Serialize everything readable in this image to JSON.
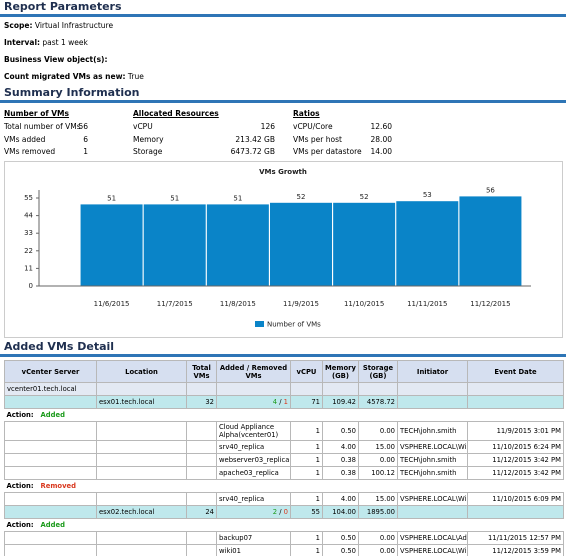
{
  "report_parameters": {
    "title": "Report Parameters",
    "items": [
      {
        "label": "Scope:",
        "value": "Virtual Infrastructure"
      },
      {
        "label": "Interval:",
        "value": "past 1 week"
      },
      {
        "label": "Business View object(s):"
      },
      {
        "label": "Count migrated VMs as new:",
        "value": "True"
      }
    ]
  },
  "summary": {
    "title": "Summary Information",
    "groups": [
      {
        "heading": "Number of VMs",
        "rows": [
          [
            "Total number of VMs",
            "56"
          ],
          [
            "VMs added",
            "6"
          ],
          [
            "VMs removed",
            "1"
          ]
        ]
      },
      {
        "heading": "Allocated Resources",
        "rows": [
          [
            "vCPU",
            "126"
          ],
          [
            "Memory",
            "213.42 GB"
          ],
          [
            "Storage",
            "6473.72 GB"
          ]
        ]
      },
      {
        "heading": "Ratios",
        "rows": [
          [
            "vCPU/Core",
            "12.60"
          ],
          [
            "VMs per host",
            "28.00"
          ],
          [
            "VMs per datastore",
            "14.00"
          ]
        ]
      }
    ]
  },
  "chart_data": {
    "type": "bar",
    "title": "VMs Growth",
    "categories": [
      "11/6/2015",
      "11/7/2015",
      "11/8/2015",
      "11/9/2015",
      "11/10/2015",
      "11/11/2015",
      "11/12/2015"
    ],
    "series": [
      {
        "name": "Number of VMs",
        "color": "#0a84c8",
        "values": [
          51,
          51,
          51,
          52,
          52,
          53,
          56
        ]
      }
    ],
    "ylim": [
      0,
      60
    ],
    "yticks": [
      0,
      11,
      22,
      33,
      44,
      55
    ],
    "grid": false,
    "legend": "bottom"
  },
  "added_vms": {
    "title": "Added VMs Detail",
    "columns": [
      "vCenter Server",
      "Location",
      "Total VMs",
      "Added / Removed VMs",
      "vCPU",
      "Memory (GB)",
      "Storage (GB)",
      "Initiator",
      "Event Date"
    ],
    "rows": [
      {
        "vcenter": "vcenter01.tech.local"
      },
      {
        "host": "esx01.tech.local",
        "total": "32",
        "added": "4",
        "separator": "/",
        "removed": "1",
        "vcpu": "71",
        "memory": "109.42",
        "storage": "4578.72"
      },
      {
        "action": "Action:",
        "status": "Added"
      },
      {
        "vm": "Cloud Appliance Alpha(vcenter01)",
        "vcpu": "1",
        "memory": "0.50",
        "storage": "0.00",
        "initiator": "TECH\\john.smith",
        "date": "11/9/2015 3:01 PM"
      },
      {
        "vm": "srv40_replica",
        "vcpu": "1",
        "memory": "4.00",
        "storage": "15.00",
        "initiator": "VSPHERE.LOCAL\\William.Fox",
        "date": "11/10/2015 6:24 PM"
      },
      {
        "vm": "webserver03_replica",
        "vcpu": "1",
        "memory": "0.38",
        "storage": "0.00",
        "initiator": "TECH\\john.smith",
        "date": "11/12/2015 3:42 PM"
      },
      {
        "vm": "apache03_replica",
        "vcpu": "1",
        "memory": "0.38",
        "storage": "100.12",
        "initiator": "TECH\\john.smith",
        "date": "11/12/2015 3:42 PM"
      },
      {
        "action": "Action:",
        "status": "Removed"
      },
      {
        "vm": "srv40_replica",
        "vcpu": "1",
        "memory": "4.00",
        "storage": "15.00",
        "initiator": "VSPHERE.LOCAL\\William.Fox",
        "date": "11/10/2015 6:09 PM"
      },
      {
        "host": "esx02.tech.local",
        "total": "24",
        "added": "2",
        "separator": "/",
        "removed": "0",
        "vcpu": "55",
        "memory": "104.00",
        "storage": "1895.00"
      },
      {
        "action": "Action:",
        "status": "Added"
      },
      {
        "vm": "backup07",
        "vcpu": "1",
        "memory": "0.50",
        "storage": "0.00",
        "initiator": "VSPHERE.LOCAL\\Administrator",
        "date": "11/11/2015 12:57 PM"
      },
      {
        "vm": "wiki01",
        "vcpu": "1",
        "memory": "0.50",
        "storage": "0.00",
        "initiator": "VSPHERE.LOCAL\\William.Fox",
        "date": "11/12/2015 3:59 PM"
      }
    ]
  }
}
